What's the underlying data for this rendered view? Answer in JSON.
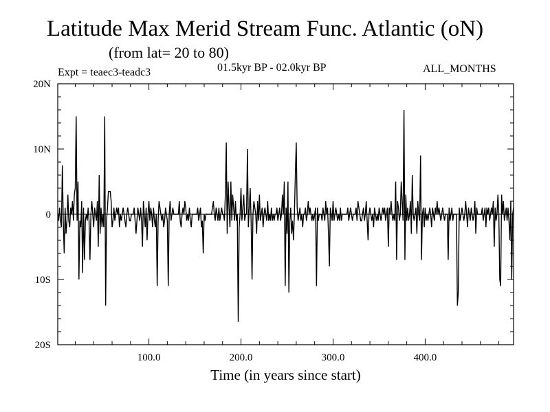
{
  "header": {
    "title": "Latitude Max Merid Stream Func. Atlantic (oN)",
    "subtitle": "(from lat= 20 to 80)",
    "experiment": "Expt = teaec3-teadc3",
    "period": "01.5kyr BP - 02.0kyr BP",
    "months": "ALL_MONTHS"
  },
  "chart_data": {
    "type": "line",
    "title": "Latitude Max Merid Stream Func. Atlantic (oN)",
    "subtitle": "(from lat= 20 to 80)",
    "xlabel": "Time (in years since start)",
    "ylabel": "",
    "xlim": [
      1,
      496
    ],
    "ylim": [
      -20,
      20
    ],
    "x_ticks": [
      100,
      200,
      300,
      400
    ],
    "x_tick_labels": [
      "100.0",
      "200.0",
      "300.0",
      "400.0"
    ],
    "y_ticks": [
      -20,
      -10,
      0,
      10,
      20
    ],
    "y_tick_labels": [
      "20S",
      "10S",
      "0",
      "10N",
      "20N"
    ],
    "series": [
      {
        "name": "teaec3-teadc3",
        "x_start": 1,
        "x_step": 1,
        "values": [
          0,
          -1,
          1,
          -1,
          -2,
          7.5,
          -1,
          -6,
          1,
          -3,
          -1,
          3,
          -1,
          -2,
          1,
          0,
          2,
          -1,
          3,
          4,
          15,
          -1,
          5,
          -10,
          -1,
          -2,
          2,
          -9,
          1,
          -7,
          -1,
          0,
          -1,
          1,
          -1,
          -7,
          0,
          2,
          0,
          -2,
          1,
          0,
          -1,
          2,
          -5,
          6,
          -3,
          1,
          -2,
          0,
          -2,
          15,
          -14,
          -1,
          1,
          3.5,
          3.5,
          3.5,
          2,
          -2,
          -1,
          1,
          -1,
          0,
          1,
          0,
          1,
          -2,
          0,
          -1,
          0,
          1,
          0,
          -1,
          -2,
          0,
          1,
          0,
          -1,
          -1,
          0,
          0,
          0,
          1,
          -1,
          -3,
          -1,
          1,
          0,
          -1,
          1,
          -1,
          -5,
          2,
          0,
          -2,
          1,
          -4,
          0,
          2,
          -1,
          1,
          0,
          -2,
          1,
          -1,
          -2,
          0,
          -11,
          -1,
          2,
          1,
          0,
          -1,
          0,
          -2,
          -1,
          1,
          0,
          -1,
          -11,
          0,
          2,
          -1,
          0,
          1,
          0,
          0,
          0,
          0,
          0,
          0,
          2,
          -1,
          -2,
          0,
          1,
          0,
          2,
          1,
          -1,
          0,
          -1,
          1,
          -1,
          -2,
          0,
          0,
          0,
          0,
          0,
          0,
          1,
          -1,
          0,
          1,
          -2,
          -1,
          -6,
          0,
          -1,
          0,
          0,
          0,
          0,
          0,
          0,
          0,
          1,
          2,
          0,
          -1,
          1,
          0,
          -1,
          1,
          -1,
          0,
          1,
          0,
          0,
          -1,
          3,
          11,
          -3,
          5,
          1,
          -2,
          5,
          -1,
          3,
          1,
          -1,
          2,
          -1,
          0,
          -16.5,
          -2,
          0,
          4,
          -1,
          1,
          3,
          -1,
          0,
          0,
          10,
          -2,
          1,
          4,
          -1,
          -10,
          0,
          2,
          1,
          0,
          -3,
          2,
          -1,
          3,
          -1,
          0,
          1,
          -2,
          0,
          1,
          0,
          -1,
          2,
          -1,
          0,
          -1,
          1,
          -1,
          0,
          -1,
          0,
          0,
          1,
          -1,
          0,
          1,
          -1,
          0,
          3,
          0,
          5,
          -11,
          1,
          -3,
          5,
          -12,
          -1,
          1,
          -3,
          -1,
          -4,
          0,
          6,
          11,
          1,
          -1,
          0,
          1,
          -1,
          0,
          -2,
          0,
          0,
          1,
          -1,
          0,
          2,
          0,
          1,
          0,
          -1,
          0,
          -1,
          0,
          1,
          -11,
          1,
          -1,
          0,
          0,
          0,
          -1,
          1,
          0,
          -1,
          2,
          0,
          1,
          -3,
          -8,
          1,
          0,
          -1,
          2,
          -1,
          0,
          1,
          0,
          -1,
          0,
          -1,
          1,
          -1,
          0,
          0,
          0,
          0,
          0,
          0,
          1,
          -1,
          0,
          1,
          0,
          -1,
          0,
          0,
          0,
          1,
          -1,
          2,
          1,
          0,
          -1,
          -1,
          0,
          1,
          -1,
          0,
          2,
          -1,
          -4,
          0,
          1,
          0,
          -1,
          0,
          -2,
          1,
          0,
          -1,
          0,
          -1,
          1,
          0,
          -1,
          0,
          1,
          0,
          1,
          -1,
          0,
          1,
          -5,
          1,
          0,
          2,
          0,
          -1,
          0,
          -1,
          5,
          -7,
          2,
          1,
          -1,
          0,
          5,
          2,
          -1,
          16,
          -7,
          3,
          -1,
          1,
          -1,
          0,
          2,
          -3,
          6,
          0,
          -1,
          0,
          1,
          -3,
          2,
          0,
          -1,
          9,
          -7,
          0,
          1,
          -2,
          1,
          -1,
          0,
          -1,
          0,
          1,
          0,
          -2,
          1,
          0,
          -1,
          1,
          0,
          2,
          0,
          1,
          0,
          -1,
          0,
          1,
          0,
          -1,
          0,
          0,
          0,
          -7,
          1,
          -1,
          0,
          1,
          -1,
          0,
          0,
          0,
          0,
          -14,
          -12,
          1,
          -1,
          0,
          1,
          0,
          -1,
          0,
          2,
          0,
          -2,
          1,
          0,
          -1,
          1,
          0,
          -1,
          0,
          2,
          -3,
          1,
          0,
          0,
          0,
          0,
          0,
          1,
          -1,
          0,
          1,
          -2,
          1,
          0,
          1,
          -1,
          0,
          1,
          0,
          2,
          -5,
          1,
          -1,
          0,
          3,
          0,
          -10,
          -11,
          3,
          0,
          2,
          -1,
          0,
          1,
          -1,
          1,
          -1,
          -4,
          2,
          -10,
          0,
          1,
          -1,
          0
        ]
      }
    ]
  }
}
